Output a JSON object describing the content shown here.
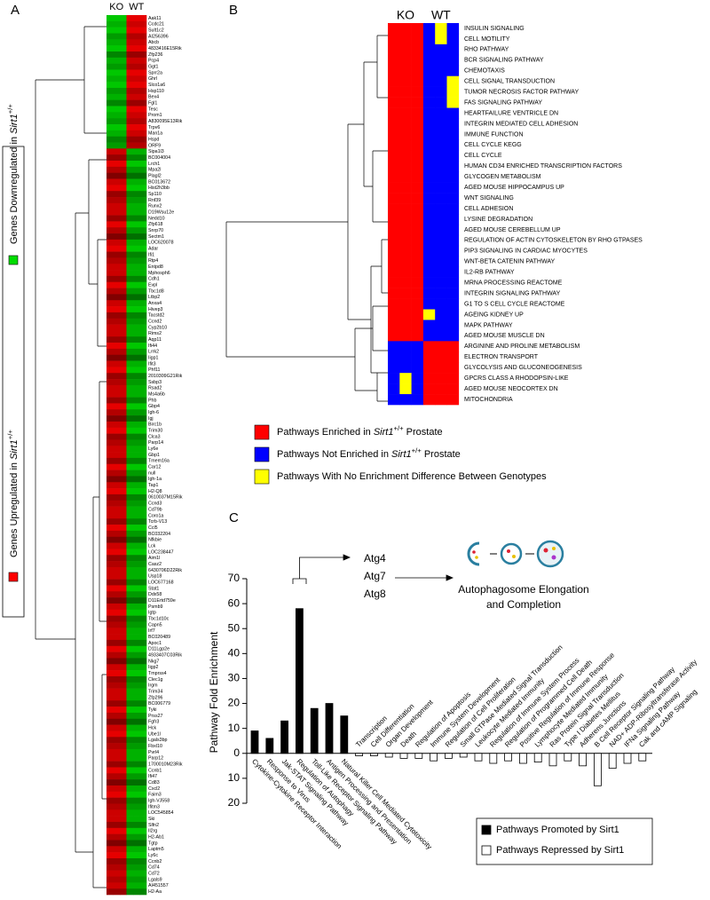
{
  "chart_data": [
    {
      "type": "heatmap",
      "panel_label": "A",
      "columns": [
        "KO",
        "WT"
      ],
      "legend": [
        {
          "color": "#ff0000",
          "text": "Genes Upregulated in ",
          "gene": "Sirt1",
          "superscript": "+/+"
        },
        {
          "color": "#00dd00",
          "text": "Genes Downregulated in ",
          "gene": "Sirt1",
          "superscript": "+/+"
        }
      ],
      "rows": [
        "Aak11",
        "Ccdc21",
        "Sult1c2",
        "AI256396",
        "Abcb",
        "4833416E15Rik",
        "Zfp236",
        "Pcp4",
        "Ggt1",
        "Sprr2a",
        "Ghrl",
        "Slco1a6",
        "Hsp110",
        "Bex4",
        "Fgl1",
        "Tesc",
        "Prom1",
        "A830095E13Rik",
        "Trpv6",
        "Man1a",
        "Hspd",
        "ORF9",
        "Sipa1l3",
        "BC004004",
        "Lrch1",
        "Mpa2l",
        "Plagl2",
        "BC013672",
        "Hist2h3bb",
        "Sp110",
        "Rnf39",
        "Runx2",
        "D19Wsu12e",
        "Nedd10",
        "Zfp618",
        "Snrp70",
        "Sectm1",
        "LOC620078",
        "Adar",
        "Ifi1",
        "Rtp4",
        "Entpd8",
        "Mphosph6",
        "Cdh1",
        "Evpl",
        "Tbc1d8",
        "Ltbp2",
        "Anxa4",
        "Hivep3",
        "Tacstd2",
        "Ccnd2",
        "Cyp2b10",
        "Rims2",
        "Aqp11",
        "Ifi44",
        "Lrrk2",
        "Iigp1",
        "Ifit3",
        "Phf11",
        "2010309G21Rik",
        "Ssbp3",
        "Rsad2",
        "Ms4a6b",
        "Phb",
        "Gbp4",
        "Igh-6",
        "Igj",
        "Birc1b",
        "Trim30",
        "Clca3",
        "Parp14",
        "Ly6e",
        "Gbp1",
        "Tmem16a",
        "Car12",
        "null",
        "Igh-1a",
        "Tap1",
        "H2-Q8",
        "0610037M15Rik",
        "Ccnd3",
        "Cd79b",
        "Coro1a",
        "Tcrb-V13",
        "Ccl5",
        "BC032204",
        "Nfkbie",
        "Lck",
        "LOC238447",
        "Aim1l",
        "Casz2",
        "6430706D22Rik",
        "Usp18",
        "LOC677168",
        "Stat1",
        "Ddx58",
        "D11Ertd759e",
        "Psmb9",
        "Igtp",
        "Tbc1d10c",
        "Capn5",
        "Irf7",
        "BC020489",
        "Apoc1",
        "D11Lgp2e",
        "4933407C03Rik",
        "Nkg7",
        "Iigp2",
        "Tmprss4",
        "Clec1g",
        "Irgm",
        "Trim34",
        "Zfp296",
        "BC006779",
        "Tyki",
        "Prss27",
        "Fgfr3",
        "Hck",
        "Ube1l",
        "Lgals3bp",
        "Fbxl10",
        "Pvrl4",
        "Parp12",
        "1700010M23Rik",
        "Ccnb1",
        "Ifi47",
        "Cd83",
        "Cxcl2",
        "Faim3",
        "Igh-VJ558",
        "Ifitm3",
        "LOC545854",
        "Ski",
        "Slfn2",
        "Il2rg",
        "H2-Ab1",
        "Tgtp",
        "Laptm5",
        "Ly6c",
        "Ccnb2",
        "Cd74",
        "Cd72",
        "Lgals9",
        "AI451557",
        "H2-Aa"
      ],
      "values": [
        -0.9,
        -0.8,
        -0.9,
        -0.7,
        -0.8,
        -0.9,
        -0.6,
        -0.8,
        -0.7,
        -0.9,
        -0.8,
        -0.9,
        -0.7,
        -0.8,
        -0.6,
        -0.9,
        -0.8,
        -0.7,
        -0.9,
        -0.8,
        -0.6,
        -0.7,
        0.8,
        0.6,
        0.9,
        0.7,
        0.5,
        0.8,
        0.9,
        0.6,
        0.7,
        0.8,
        0.8,
        0.6,
        0.9,
        0.7,
        0.5,
        0.8,
        0.9,
        0.6,
        0.7,
        0.8,
        0.8,
        0.6,
        0.9,
        0.7,
        0.5,
        0.8,
        0.9,
        0.6,
        0.7,
        0.8,
        0.8,
        0.6,
        0.9,
        0.7,
        0.5,
        0.8,
        0.9,
        0.6,
        0.7,
        0.8,
        0.8,
        0.6,
        0.9,
        0.7,
        0.5,
        0.8,
        0.9,
        0.6,
        0.7,
        0.8,
        0.8,
        0.6,
        0.9,
        0.7,
        0.5,
        0.8,
        0.9,
        0.6,
        0.7,
        0.8,
        0.8,
        0.6,
        0.9,
        0.7,
        0.5,
        0.8,
        0.9,
        0.6,
        0.7,
        0.8,
        0.8,
        0.6,
        0.9,
        0.7,
        0.5,
        0.8,
        0.9,
        0.6,
        0.7,
        0.8,
        0.8,
        0.6,
        0.9,
        0.7,
        0.5,
        0.8,
        0.9,
        0.6,
        0.7,
        0.8,
        0.8,
        0.6,
        0.9,
        0.7,
        0.5,
        0.8,
        0.9,
        0.6,
        0.7,
        0.8,
        0.8,
        0.6,
        0.9,
        0.7,
        0.5,
        0.8,
        0.9,
        0.6,
        0.7,
        0.8,
        0.8,
        0.6,
        0.9,
        0.7,
        0.5,
        0.8,
        0.9,
        0.6,
        0.7,
        0.8,
        0.7,
        0.8,
        0.6
      ]
    },
    {
      "type": "heatmap",
      "panel_label": "B",
      "columns": [
        "KO",
        "WT"
      ],
      "legend": [
        {
          "color": "#ff0000",
          "text": "Pathways Enriched in ",
          "gene": "Sirt1",
          "superscript": "+/+",
          "suffix": " Prostate"
        },
        {
          "color": "#0000ff",
          "text": "Pathways Not Enriched in ",
          "gene": "Sirt1",
          "superscript": "+/+",
          "suffix": " Prostate"
        },
        {
          "color": "#ffff00",
          "text": "Pathways With No Enrichment Difference Between Genotypes"
        }
      ],
      "rows": [
        "INSULIN SIGNALING",
        "CELL MOTILITY",
        "RHO PATHWAY",
        "BCR SIGNALING PATHWAY",
        "CHEMOTAXIS",
        "CELL SIGNAL TRANSDUCTION",
        "TUMOR NECROSIS FACTOR PATHWAY",
        "FAS SIGNALING PATHWAY",
        "HEARTFAILURE VENTRICLE DN",
        "INTEGRIN MEDIATED CELL ADHESION",
        "IMMUNE FUNCTION",
        "CELL CYCLE KEGG",
        "CELL CYCLE",
        "HUMAN CD34 ENRICHED TRANSCRIPTION FACTORS",
        "GLYCOGEN METABOLISM",
        "AGED MOUSE HIPPOCAMPUS UP",
        "WNT SIGNALING",
        "CELL ADHESION",
        "LYSINE DEGRADATION",
        "AGED MOUSE CEREBELLUM UP",
        "REGULATION OF ACTIN CYTOSKELETON BY RHO GTPASES",
        "PIP3 SIGNALING IN CARDIAC MYOCYTES",
        "WNT-BETA CATENIN PATHWAY",
        "IL2-RB PATHWAY",
        "MRNA PROCESSING REACTOME",
        "INTEGRIN SIGNALING PATHWAY",
        "G1 TO S CELL CYCLE REACTOME",
        "AGEING KIDNEY UP",
        "MAPK PATHWAY",
        "AGED MOUSE MUSCLE DN",
        "ARGININE AND PROLINE METABOLISM",
        "ELECTRON TRANSPORT",
        "GLYCOLYSIS AND GLUCONEOGENESIS",
        "GPCRS CLASS A RHODOPSIN-LIKE",
        "AGED MOUSE NEOCORTEX DN",
        "MITOCHONDRIA"
      ],
      "values": [
        [
          1,
          1,
          1,
          -1,
          0,
          -1
        ],
        [
          1,
          1,
          1,
          -1,
          0,
          -1
        ],
        [
          1,
          1,
          1,
          -1,
          -1,
          -1
        ],
        [
          1,
          1,
          1,
          -1,
          -1,
          -1
        ],
        [
          1,
          1,
          1,
          -1,
          -1,
          -1
        ],
        [
          1,
          1,
          1,
          -1,
          -1,
          0
        ],
        [
          1,
          1,
          1,
          -1,
          -1,
          0
        ],
        [
          1,
          1,
          1,
          -1,
          -1,
          0
        ],
        [
          1,
          1,
          1,
          -1,
          -1,
          -1
        ],
        [
          1,
          1,
          1,
          -1,
          -1,
          -1
        ],
        [
          1,
          1,
          1,
          -1,
          -1,
          -1
        ],
        [
          1,
          1,
          1,
          -1,
          -1,
          -1
        ],
        [
          1,
          1,
          1,
          -1,
          -1,
          -1
        ],
        [
          1,
          1,
          1,
          -1,
          -1,
          -1
        ],
        [
          1,
          1,
          1,
          -1,
          -1,
          -1
        ],
        [
          1,
          1,
          1,
          -1,
          -1,
          -1
        ],
        [
          1,
          1,
          1,
          -1,
          -1,
          -1
        ],
        [
          1,
          1,
          1,
          -1,
          -1,
          -1
        ],
        [
          1,
          1,
          1,
          -1,
          -1,
          -1
        ],
        [
          1,
          1,
          1,
          -1,
          -1,
          -1
        ],
        [
          1,
          1,
          1,
          -1,
          -1,
          -1
        ],
        [
          1,
          1,
          1,
          -1,
          -1,
          -1
        ],
        [
          1,
          1,
          1,
          -1,
          -1,
          -1
        ],
        [
          1,
          1,
          1,
          -1,
          -1,
          -1
        ],
        [
          1,
          1,
          1,
          -1,
          -1,
          -1
        ],
        [
          1,
          1,
          1,
          -1,
          -1,
          -1
        ],
        [
          1,
          1,
          1,
          -1,
          -1,
          -1
        ],
        [
          1,
          1,
          1,
          0,
          -1,
          -1
        ],
        [
          1,
          1,
          1,
          -1,
          -1,
          -1
        ],
        [
          1,
          1,
          1,
          -1,
          -1,
          -1
        ],
        [
          -1,
          -1,
          -1,
          1,
          1,
          1
        ],
        [
          -1,
          -1,
          -1,
          1,
          1,
          1
        ],
        [
          -1,
          -1,
          -1,
          1,
          1,
          1
        ],
        [
          -1,
          0,
          -1,
          1,
          1,
          1
        ],
        [
          -1,
          0,
          -1,
          1,
          1,
          1
        ],
        [
          -1,
          -1,
          -1,
          1,
          1,
          1
        ]
      ]
    },
    {
      "type": "bar",
      "panel_label": "C",
      "y_label": "Pathway Fold Enrichment",
      "categories": [
        "Cytokine-Cytokine Receptor Interaction",
        "Response to Virus",
        "Jak-STAT Signaling Pathway",
        "Regulation of Autophagy",
        "Toll-Like Receptor Signaling Pathway",
        "Antigen Processing and Presentation",
        "Natural Killer Cell Mediated Cytotoxicity",
        "Transcription",
        "Cell Differentiation",
        "Organ Development",
        "Death",
        "Regulation of Apoptosis",
        "Immune System Development",
        "Regulation of Cell Proliferation",
        "Small GTPase Mediated Signal Transduction",
        "Leukocyte Mediated Immunity",
        "Regulation of Immune System Process",
        "Regulation of Programmed Cell Death",
        "Positive Regulation of Immune Response",
        "Lymphocyte Mediated Immunity",
        "Ras Protein Signal Transduction",
        "Type I Diabetes Mellitus",
        "Adherens Junctions",
        "B Cell Receptor Signaling Pathway",
        "NAD+ ADP-Ribosyltransferase Activity",
        "IFNa Signaling Pathway",
        "Cak and cAMP Signaling"
      ],
      "series": [
        {
          "name": "Pathways Promoted by Sirt1",
          "color": "#000000",
          "values": [
            9,
            6,
            13,
            58,
            18,
            20,
            15,
            null,
            null,
            null,
            null,
            null,
            null,
            null,
            null,
            null,
            null,
            null,
            null,
            null,
            null,
            null,
            null,
            null,
            null,
            null,
            null
          ]
        },
        {
          "name": "Pathways Repressed by Sirt1",
          "color": "#ffffff",
          "values": [
            null,
            null,
            null,
            null,
            null,
            null,
            null,
            -1,
            -1,
            -1.5,
            -2,
            -2,
            -3,
            -2,
            -1.5,
            -3,
            -4,
            -3,
            -4,
            -3.5,
            -5,
            -3,
            -5,
            -13,
            -6,
            -4,
            -3
          ]
        }
      ],
      "ylim": [
        -20,
        70
      ],
      "yticks": [
        {
          "value": -20,
          "label": "20"
        },
        {
          "value": -10,
          "label": "10"
        },
        0,
        10,
        20,
        30,
        40,
        50,
        60,
        70
      ],
      "annotations": {
        "genes": [
          "Atg4",
          "Atg7",
          "Atg8"
        ],
        "process": [
          "Autophagosome Elongation",
          "and Completion"
        ]
      }
    }
  ]
}
